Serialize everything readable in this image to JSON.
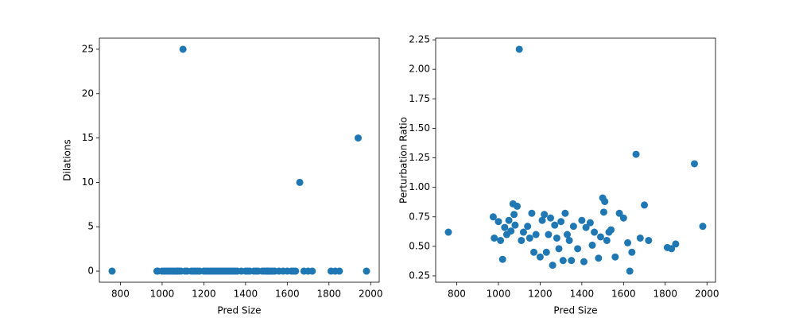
{
  "chart_data": [
    {
      "type": "scatter",
      "xlabel": "Pred Size",
      "ylabel": "Dilations",
      "color": "#1f77b4",
      "xlim": [
        699,
        2041
      ],
      "ylim": [
        -1.25,
        26.25
      ],
      "xticks": [
        800,
        1000,
        1200,
        1400,
        1600,
        1800,
        2000
      ],
      "yticks": [
        0,
        5,
        10,
        15,
        20,
        25
      ],
      "x": [
        760,
        1100,
        1940,
        1660,
        1980,
        975,
        980,
        1000,
        1010,
        1020,
        1030,
        1040,
        1050,
        1060,
        1070,
        1075,
        1080,
        1090,
        1110,
        1120,
        1140,
        1150,
        1160,
        1170,
        1180,
        1200,
        1210,
        1220,
        1230,
        1240,
        1250,
        1260,
        1270,
        1280,
        1290,
        1300,
        1310,
        1320,
        1330,
        1340,
        1350,
        1360,
        1380,
        1400,
        1410,
        1420,
        1440,
        1450,
        1460,
        1480,
        1490,
        1500,
        1505,
        1510,
        1520,
        1530,
        1540,
        1560,
        1580,
        1600,
        1620,
        1630,
        1640,
        1680,
        1700,
        1720,
        1810,
        1830,
        1850
      ],
      "values": [
        0,
        25,
        15,
        10,
        0,
        0,
        0,
        0,
        0,
        0,
        0,
        0,
        0,
        0,
        0,
        0,
        0,
        0,
        0,
        0,
        0,
        0,
        0,
        0,
        0,
        0,
        0,
        0,
        0,
        0,
        0,
        0,
        0,
        0,
        0,
        0,
        0,
        0,
        0,
        0,
        0,
        0,
        0,
        0,
        0,
        0,
        0,
        0,
        0,
        0,
        0,
        0,
        0,
        0,
        0,
        0,
        0,
        0,
        0,
        0,
        0,
        0,
        0,
        0,
        0,
        0,
        0,
        0,
        0
      ]
    },
    {
      "type": "scatter",
      "xlabel": "Pred Size",
      "ylabel": "Perturbation Ratio",
      "color": "#1f77b4",
      "xlim": [
        699,
        2041
      ],
      "ylim": [
        0.196,
        2.264
      ],
      "xticks": [
        800,
        1000,
        1200,
        1400,
        1600,
        1800,
        2000
      ],
      "yticks": [
        0.25,
        {
          "value": 0.5,
          "label": "0.50"
        },
        0.75,
        {
          "value": 1,
          "label": "1.00"
        },
        1.25,
        {
          "value": 1.5,
          "label": "1.50"
        },
        1.75,
        {
          "value": 2,
          "label": "2.00"
        },
        2.25
      ],
      "x": [
        760,
        1100,
        1940,
        1660,
        1980,
        975,
        980,
        1000,
        1010,
        1020,
        1030,
        1040,
        1050,
        1060,
        1070,
        1075,
        1080,
        1090,
        1110,
        1120,
        1140,
        1150,
        1160,
        1170,
        1180,
        1200,
        1210,
        1220,
        1230,
        1240,
        1250,
        1260,
        1270,
        1280,
        1290,
        1300,
        1310,
        1320,
        1330,
        1340,
        1350,
        1360,
        1380,
        1400,
        1410,
        1420,
        1440,
        1450,
        1460,
        1480,
        1490,
        1500,
        1505,
        1510,
        1520,
        1530,
        1540,
        1560,
        1580,
        1600,
        1620,
        1630,
        1640,
        1680,
        1700,
        1720,
        1810,
        1830,
        1850
      ],
      "values": [
        0.62,
        2.17,
        1.2,
        1.28,
        0.67,
        0.75,
        0.57,
        0.71,
        0.55,
        0.39,
        0.66,
        0.6,
        0.72,
        0.63,
        0.86,
        0.77,
        0.68,
        0.84,
        0.55,
        0.62,
        0.67,
        0.57,
        0.78,
        0.45,
        0.6,
        0.41,
        0.72,
        0.77,
        0.45,
        0.6,
        0.74,
        0.34,
        0.68,
        0.57,
        0.48,
        0.71,
        0.38,
        0.78,
        0.6,
        0.55,
        0.38,
        0.67,
        0.48,
        0.72,
        0.37,
        0.66,
        0.7,
        0.51,
        0.62,
        0.4,
        0.58,
        0.91,
        0.79,
        0.88,
        0.55,
        0.62,
        0.64,
        0.41,
        0.78,
        0.74,
        0.53,
        0.29,
        0.45,
        0.57,
        0.85,
        0.55,
        0.49,
        0.48,
        0.52
      ]
    }
  ]
}
